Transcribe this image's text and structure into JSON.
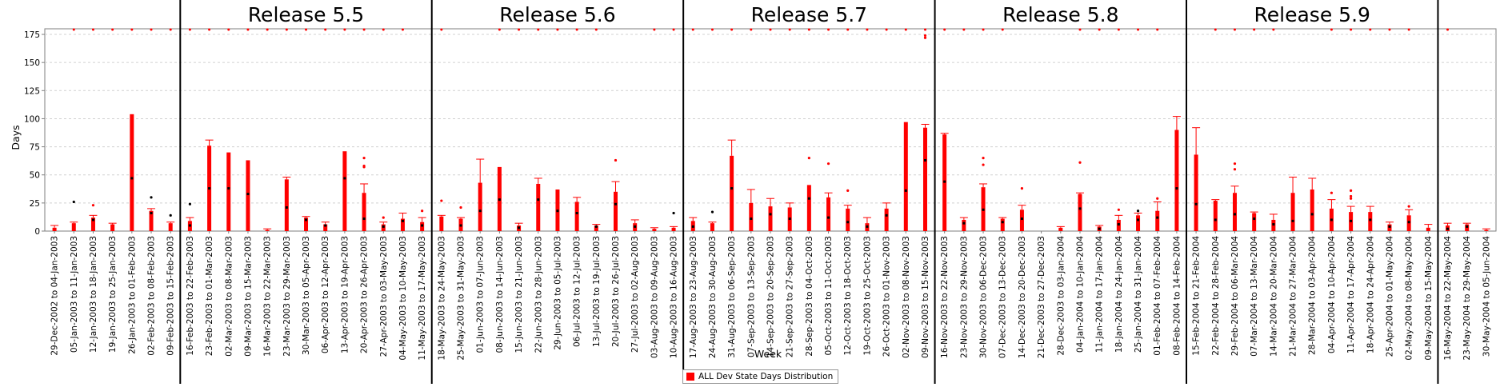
{
  "chart_data": {
    "type": "bar",
    "title": "",
    "xlabel": "Week",
    "ylabel": "Days",
    "ylim": [
      0,
      180
    ],
    "yticks": [
      0,
      25,
      50,
      75,
      100,
      125,
      150,
      175
    ],
    "grid": true,
    "legend": {
      "placement": "bottom-center",
      "entries": [
        "ALL Dev State Days Distribution"
      ]
    },
    "series_color": "#ff0000",
    "releases": [
      {
        "name": "",
        "start_index": 0
      },
      {
        "name": "Release 5.5",
        "start_index": 7
      },
      {
        "name": "Release 5.6",
        "start_index": 20
      },
      {
        "name": "Release 5.7",
        "start_index": 33
      },
      {
        "name": "Release 5.8",
        "start_index": 46
      },
      {
        "name": "Release 5.9",
        "start_index": 59
      },
      {
        "name": "",
        "start_index": 72
      }
    ],
    "categories": [
      "29-Dec-2002 to 04-Jan-2003",
      "05-Jan-2003 to 11-Jan-2003",
      "12-Jan-2003 to 18-Jan-2003",
      "19-Jan-2003 to 25-Jan-2003",
      "26-Jan-2003 to 01-Feb-2003",
      "02-Feb-2003 to 08-Feb-2003",
      "09-Feb-2003 to 15-Feb-2003",
      "16-Feb-2003 to 22-Feb-2003",
      "23-Feb-2003 to 01-Mar-2003",
      "02-Mar-2003 to 08-Mar-2003",
      "09-Mar-2003 to 15-Mar-2003",
      "16-Mar-2003 to 22-Mar-2003",
      "23-Mar-2003 to 29-Mar-2003",
      "30-Mar-2003 to 05-Apr-2003",
      "06-Apr-2003 to 12-Apr-2003",
      "13-Apr-2003 to 19-Apr-2003",
      "20-Apr-2003 to 26-Apr-2003",
      "27-Apr-2003 to 03-May-2003",
      "04-May-2003 to 10-May-2003",
      "11-May-2003 to 17-May-2003",
      "18-May-2003 to 24-May-2003",
      "25-May-2003 to 31-May-2003",
      "01-Jun-2003 to 07-Jun-2003",
      "08-Jun-2003 to 14-Jun-2003",
      "15-Jun-2003 to 21-Jun-2003",
      "22-Jun-2003 to 28-Jun-2003",
      "29-Jun-2003 to 05-Jul-2003",
      "06-Jul-2003 to 12-Jul-2003",
      "13-Jul-2003 to 19-Jul-2003",
      "20-Jul-2003 to 26-Jul-2003",
      "27-Jul-2003 to 02-Aug-2003",
      "03-Aug-2003 to 09-Aug-2003",
      "10-Aug-2003 to 16-Aug-2003",
      "17-Aug-2003 to 23-Aug-2003",
      "24-Aug-2003 to 30-Aug-2003",
      "31-Aug-2003 to 06-Sep-2003",
      "07-Sep-2003 to 13-Sep-2003",
      "14-Sep-2003 to 20-Sep-2003",
      "21-Sep-2003 to 27-Sep-2003",
      "28-Sep-2003 to 04-Oct-2003",
      "05-Oct-2003 to 11-Oct-2003",
      "12-Oct-2003 to 18-Oct-2003",
      "19-Oct-2003 to 25-Oct-2003",
      "26-Oct-2003 to 01-Nov-2003",
      "02-Nov-2003 to 08-Nov-2003",
      "09-Nov-2003 to 15-Nov-2003",
      "16-Nov-2003 to 22-Nov-2003",
      "23-Nov-2003 to 29-Nov-2003",
      "30-Nov-2003 to 06-Dec-2003",
      "07-Dec-2003 to 13-Dec-2003",
      "14-Dec-2003 to 20-Dec-2003",
      "21-Dec-2003 to 27-Dec-2003",
      "28-Dec-2003 to 03-Jan-2004",
      "04-Jan-2004 to 10-Jan-2004",
      "11-Jan-2004 to 17-Jan-2004",
      "18-Jan-2004 to 24-Jan-2004",
      "25-Jan-2004 to 31-Jan-2004",
      "01-Feb-2004 to 07-Feb-2004",
      "08-Feb-2004 to 14-Feb-2004",
      "15-Feb-2004 to 21-Feb-2004",
      "22-Feb-2004 to 28-Feb-2004",
      "29-Feb-2004 to 06-Mar-2004",
      "07-Mar-2004 to 13-Mar-2004",
      "14-Mar-2004 to 20-Mar-2004",
      "21-Mar-2004 to 27-Mar-2004",
      "28-Mar-2004 to 03-Apr-2004",
      "04-Apr-2004 to 10-Apr-2004",
      "11-Apr-2004 to 17-Apr-2004",
      "18-Apr-2004 to 24-Apr-2004",
      "25-Apr-2004 to 01-May-2004",
      "02-May-2004 to 08-May-2004",
      "09-May-2004 to 15-May-2004",
      "16-May-2004 to 22-May-2004",
      "23-May-2004 to 29-May-2004",
      "30-May-2004 to 05-Jun-2004"
    ],
    "values": [
      3,
      7,
      12,
      6,
      104,
      18,
      7,
      9,
      76,
      70,
      63,
      1,
      46,
      12,
      6,
      71,
      34,
      6,
      11,
      8,
      13,
      11,
      43,
      57,
      5,
      42,
      37,
      26,
      5,
      35,
      7,
      2,
      3,
      9,
      7,
      67,
      25,
      22,
      21,
      41,
      30,
      20,
      7,
      20,
      97,
      92,
      86,
      10,
      39,
      11,
      19,
      0,
      3,
      33,
      4,
      10,
      14,
      18,
      90,
      68,
      27,
      34,
      16,
      10,
      34,
      37,
      20,
      17,
      17,
      6,
      14,
      3,
      5,
      6,
      1
    ],
    "upper": [
      5,
      8,
      14,
      7,
      104,
      20,
      8,
      12,
      81,
      70,
      63,
      2,
      48,
      13,
      8,
      71,
      42,
      8,
      16,
      12,
      14,
      12,
      64,
      57,
      7,
      47,
      37,
      30,
      6,
      44,
      10,
      3,
      4,
      12,
      8,
      81,
      37,
      29,
      25,
      41,
      34,
      23,
      12,
      25,
      97,
      95,
      87,
      12,
      42,
      12,
      23,
      0,
      4,
      34,
      5,
      14,
      16,
      26,
      102,
      92,
      28,
      40,
      17,
      15,
      48,
      47,
      28,
      22,
      22,
      8,
      19,
      6,
      7,
      7,
      2
    ],
    "means": [
      null,
      null,
      10,
      null,
      47,
      16,
      null,
      5,
      38,
      38,
      33,
      null,
      21,
      10,
      5,
      47,
      11,
      4,
      9,
      5,
      null,
      5,
      18,
      28,
      3,
      28,
      18,
      16,
      4,
      24,
      4,
      null,
      null,
      4,
      null,
      38,
      11,
      15,
      11,
      29,
      12,
      8,
      4,
      14,
      36,
      63,
      44,
      7,
      19,
      8,
      11,
      null,
      null,
      20,
      2,
      6,
      10,
      12,
      38,
      24,
      10,
      15,
      11,
      6,
      9,
      15,
      10,
      9,
      10,
      4,
      8,
      null,
      2,
      4,
      null
    ],
    "outliers": [
      [],
      [
        26
      ],
      [
        23
      ],
      [],
      [],
      [
        30
      ],
      [
        14
      ],
      [
        24
      ],
      [],
      [],
      [],
      [],
      [],
      [],
      [],
      [],
      [
        65,
        58,
        57
      ],
      [
        12
      ],
      [],
      [
        18
      ],
      [
        27
      ],
      [
        21
      ],
      [],
      [],
      [],
      [],
      [],
      [],
      [],
      [
        63
      ],
      [],
      [],
      [
        16
      ],
      [],
      [
        17
      ],
      [],
      [],
      [],
      [],
      [
        65
      ],
      [
        60
      ],
      [
        36
      ],
      [],
      [],
      [],
      [
        174,
        172
      ],
      [],
      [],
      [
        65,
        59
      ],
      [],
      [
        38
      ],
      [],
      [],
      [
        61
      ],
      [],
      [
        19
      ],
      [
        18
      ],
      [
        29
      ],
      [],
      [],
      [],
      [
        60,
        55
      ],
      [],
      [],
      [],
      [],
      [
        34
      ],
      [
        36,
        31,
        29
      ],
      [],
      [],
      [
        22
      ],
      [],
      [],
      [],
      []
    ],
    "top_outliers": [
      0,
      1,
      1,
      1,
      1,
      1,
      1,
      1,
      1,
      1,
      1,
      1,
      1,
      1,
      1,
      1,
      1,
      1,
      1,
      0,
      1,
      0,
      0,
      1,
      1,
      1,
      1,
      1,
      1,
      0,
      0,
      1,
      1,
      1,
      1,
      1,
      1,
      1,
      1,
      1,
      1,
      1,
      1,
      1,
      1,
      1,
      1,
      1,
      1,
      1,
      0,
      0,
      0,
      1,
      1,
      1,
      1,
      1,
      0,
      0,
      1,
      1,
      1,
      1,
      0,
      0,
      1,
      1,
      1,
      1,
      1,
      0,
      1,
      0,
      0
    ]
  }
}
